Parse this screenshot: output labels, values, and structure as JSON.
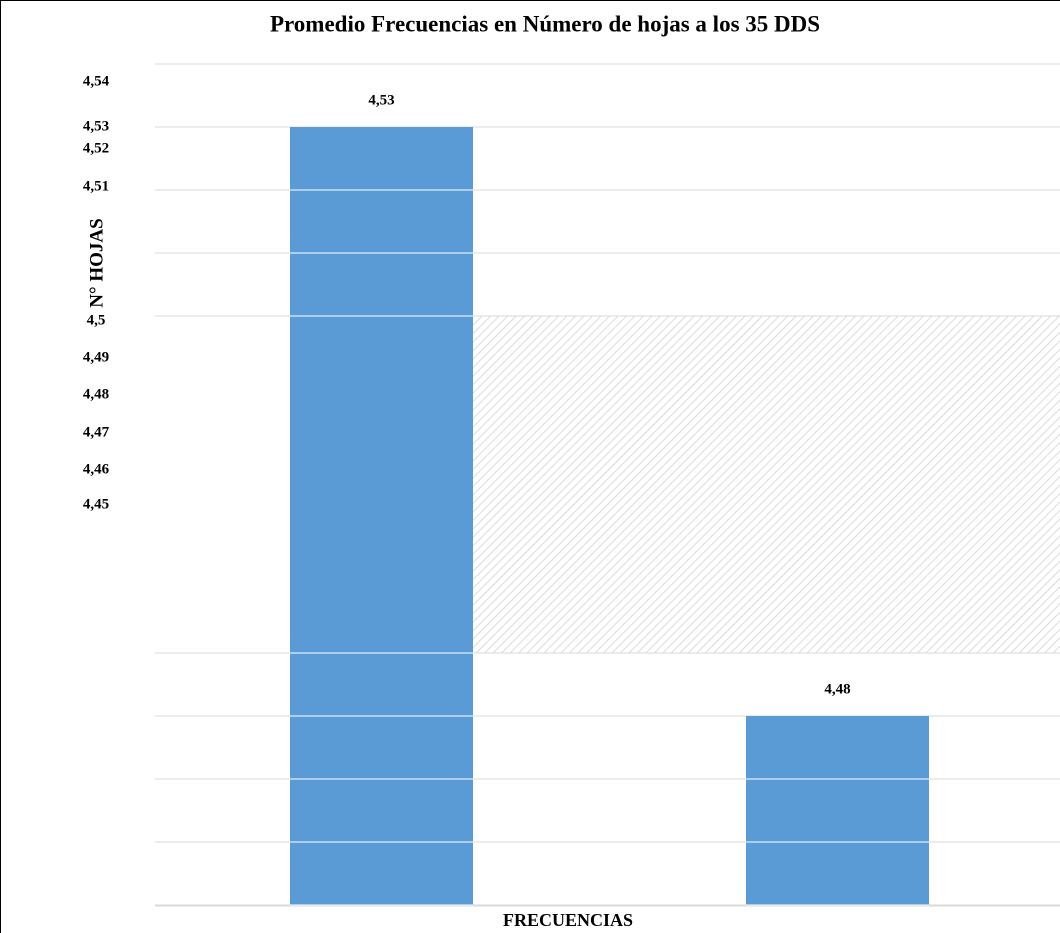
{
  "chart_data": {
    "type": "bar",
    "title": "Promedio Frecuencias en Número de hojas a los 35 DDS",
    "y_label": "N° HOJAS",
    "x_label": "FRECUENCIAS",
    "values": [
      4.53,
      4.48
    ],
    "value_labels": [
      "4,53",
      "4,48"
    ],
    "color": "#5b9bd5",
    "ylim": [
      4.45,
      4.54
    ],
    "axis_break": [
      4.49,
      4.5
    ],
    "yticks": [
      {
        "value": 4.54,
        "label": "4,54"
      },
      {
        "value": 4.53,
        "label": "4,53"
      },
      {
        "value": 4.52,
        "label": "4,52"
      },
      {
        "value": 4.51,
        "label": "4,51"
      },
      {
        "value": 4.5,
        "label": "4,5"
      },
      {
        "value": 4.49,
        "label": "4,49"
      },
      {
        "value": 4.48,
        "label": "4,48"
      },
      {
        "value": 4.47,
        "label": "4,47"
      },
      {
        "value": 4.46,
        "label": "4,46"
      },
      {
        "value": 4.45,
        "label": "4,45"
      }
    ],
    "grid": true
  }
}
